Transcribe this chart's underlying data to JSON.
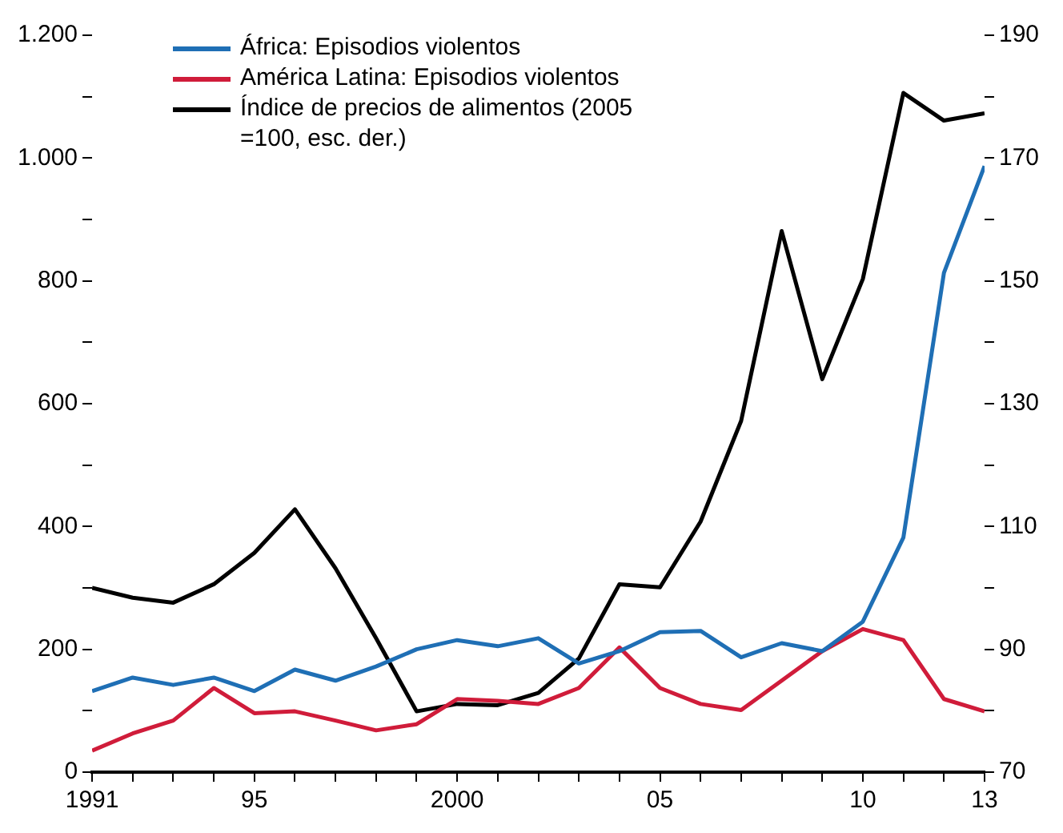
{
  "chart_data": {
    "type": "line",
    "x": [
      1991,
      1992,
      1993,
      1994,
      1995,
      1996,
      1997,
      1998,
      1999,
      2000,
      2001,
      2002,
      2003,
      2004,
      2005,
      2006,
      2007,
      2008,
      2009,
      2010,
      2011,
      2012,
      2013
    ],
    "series": [
      {
        "name": "África: Episodios violentos",
        "color": "#1f6fb5",
        "values": [
          132,
          154,
          142,
          154,
          132,
          167,
          149,
          172,
          200,
          215,
          205,
          218,
          177,
          197,
          228,
          230,
          187,
          210,
          197,
          245,
          382,
          813,
          987
        ]
      },
      {
        "name": "América Latina: Episodios violentos",
        "color": "#d01c3a",
        "values": [
          35,
          63,
          84,
          137,
          96,
          99,
          84,
          68,
          78,
          119,
          116,
          111,
          137,
          203,
          137,
          111,
          101,
          149,
          197,
          233,
          215,
          119,
          99
        ]
      },
      {
        "name": "Índice de precios de alimentos (2005 =100, esc. der.)",
        "color": "#000000",
        "axis": "y2",
        "values": [
          100,
          98.4,
          97.6,
          100.6,
          105.7,
          112.8,
          103.2,
          91.8,
          79.9,
          81.1,
          80.9,
          82.9,
          88.5,
          100.6,
          100.1,
          110.8,
          127.2,
          158.1,
          134,
          150.3,
          180.6,
          176.1,
          177.3
        ]
      }
    ],
    "xlim": [
      1991,
      2013
    ],
    "xticks": [
      1991,
      {
        "value": 1992,
        "label": null
      },
      {
        "value": 1993,
        "label": null
      },
      {
        "value": 1994,
        "label": null
      },
      {
        "value": 1995,
        "label": "95"
      },
      {
        "value": 1996,
        "label": null
      },
      {
        "value": 1997,
        "label": null
      },
      {
        "value": 1998,
        "label": null
      },
      {
        "value": 1999,
        "label": null
      },
      2000,
      {
        "value": 2001,
        "label": null
      },
      {
        "value": 2002,
        "label": null
      },
      {
        "value": 2003,
        "label": null
      },
      {
        "value": 2004,
        "label": null
      },
      {
        "value": 2005,
        "label": "05"
      },
      {
        "value": 2006,
        "label": null
      },
      {
        "value": 2007,
        "label": null
      },
      {
        "value": 2008,
        "label": null
      },
      {
        "value": 2009,
        "label": null
      },
      {
        "value": 2010,
        "label": "10"
      },
      {
        "value": 2011,
        "label": null
      },
      {
        "value": 2012,
        "label": null
      },
      {
        "value": 2013,
        "label": "13"
      }
    ],
    "ylim": [
      0,
      1200
    ],
    "yticks": [
      0,
      {
        "value": 100,
        "label": null
      },
      200,
      {
        "value": 300,
        "label": null
      },
      400,
      {
        "value": 500,
        "label": null
      },
      600,
      {
        "value": 700,
        "label": null
      },
      800,
      {
        "value": 900,
        "label": null
      },
      {
        "value": 1000,
        "label": "1.000"
      },
      {
        "value": 1100,
        "label": null
      },
      {
        "value": 1200,
        "label": "1.200"
      }
    ],
    "y2lim": [
      70,
      190
    ],
    "y2ticks": [
      70,
      {
        "value": 80,
        "label": null
      },
      90,
      {
        "value": 100,
        "label": null
      },
      110,
      {
        "value": 120,
        "label": null
      },
      130,
      {
        "value": 140,
        "label": null
      },
      150,
      {
        "value": 160,
        "label": null
      },
      170,
      {
        "value": 180,
        "label": null
      },
      190
    ],
    "grid": false,
    "legend": "top left",
    "marker": "none",
    "line_style": "solid"
  }
}
